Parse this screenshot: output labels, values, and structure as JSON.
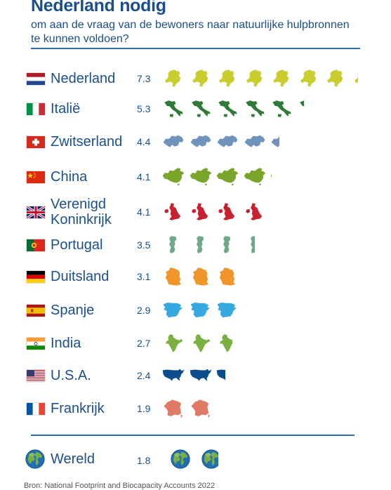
{
  "header": {
    "title": "Nederland nodig",
    "subtitle": "om aan de vraag van de bewoners naar natuurlijke hulpbronnen te kunnen voldoen?"
  },
  "chart_data": {
    "type": "bar",
    "title": "Nederland nodig",
    "subtitle": "om aan de vraag van de bewoners naar natuurlijke hulpbronnen te kunnen voldoen?",
    "unit_per_icon": 1,
    "categories": [
      "Nederland",
      "Italië",
      "Zwitserland",
      "China",
      "Verenigd Koninkrijk",
      "Portugal",
      "Duitsland",
      "Spanje",
      "India",
      "U.S.A.",
      "Frankrijk",
      "Wereld"
    ],
    "values": [
      7.3,
      5.3,
      4.4,
      4.1,
      4.1,
      3.5,
      3.1,
      2.9,
      2.7,
      2.4,
      1.9,
      1.8
    ],
    "rows": [
      {
        "country": "Nederland",
        "value": 7.3,
        "value_label": "7.3",
        "flag": "nl",
        "icon": "netherlands-map-icon",
        "color": "#c9cd2e"
      },
      {
        "country": "Italië",
        "value": 5.3,
        "value_label": "5.3",
        "flag": "it",
        "icon": "italy-map-icon",
        "color": "#2f7a36"
      },
      {
        "country": "Zwitserland",
        "value": 4.4,
        "value_label": "4.4",
        "flag": "ch",
        "icon": "switzerland-map-icon",
        "color": "#6f93bb"
      },
      {
        "country": "China",
        "value": 4.1,
        "value_label": "4.1",
        "flag": "cn",
        "icon": "china-map-icon",
        "color": "#7aa52b"
      },
      {
        "country": "Verenigd Koninkrijk",
        "value": 4.1,
        "value_label": "4.1",
        "flag": "uk",
        "icon": "uk-map-icon",
        "color": "#c8202e"
      },
      {
        "country": "Portugal",
        "value": 3.5,
        "value_label": "3.5",
        "flag": "pt",
        "icon": "portugal-map-icon",
        "color": "#6fa98a"
      },
      {
        "country": "Duitsland",
        "value": 3.1,
        "value_label": "3.1",
        "flag": "de",
        "icon": "germany-map-icon",
        "color": "#f0952a"
      },
      {
        "country": "Spanje",
        "value": 2.9,
        "value_label": "2.9",
        "flag": "es",
        "icon": "spain-map-icon",
        "color": "#35a9e0"
      },
      {
        "country": "India",
        "value": 2.7,
        "value_label": "2.7",
        "flag": "in",
        "icon": "india-map-icon",
        "color": "#7ab040"
      },
      {
        "country": "U.S.A.",
        "value": 2.4,
        "value_label": "2.4",
        "flag": "us",
        "icon": "usa-map-icon",
        "color": "#0d4d8c"
      },
      {
        "country": "Frankrijk",
        "value": 1.9,
        "value_label": "1.9",
        "flag": "fr",
        "icon": "france-map-icon",
        "color": "#e07a66"
      },
      {
        "country": "Wereld",
        "value": 1.8,
        "value_label": "1.8",
        "flag": "globe",
        "icon": "globe-icon",
        "color": "#1f6fb2"
      }
    ],
    "legend": false,
    "grid": false
  },
  "footer": {
    "source": "Bron: National Footprint and Biocapacity Accounts 2022"
  }
}
